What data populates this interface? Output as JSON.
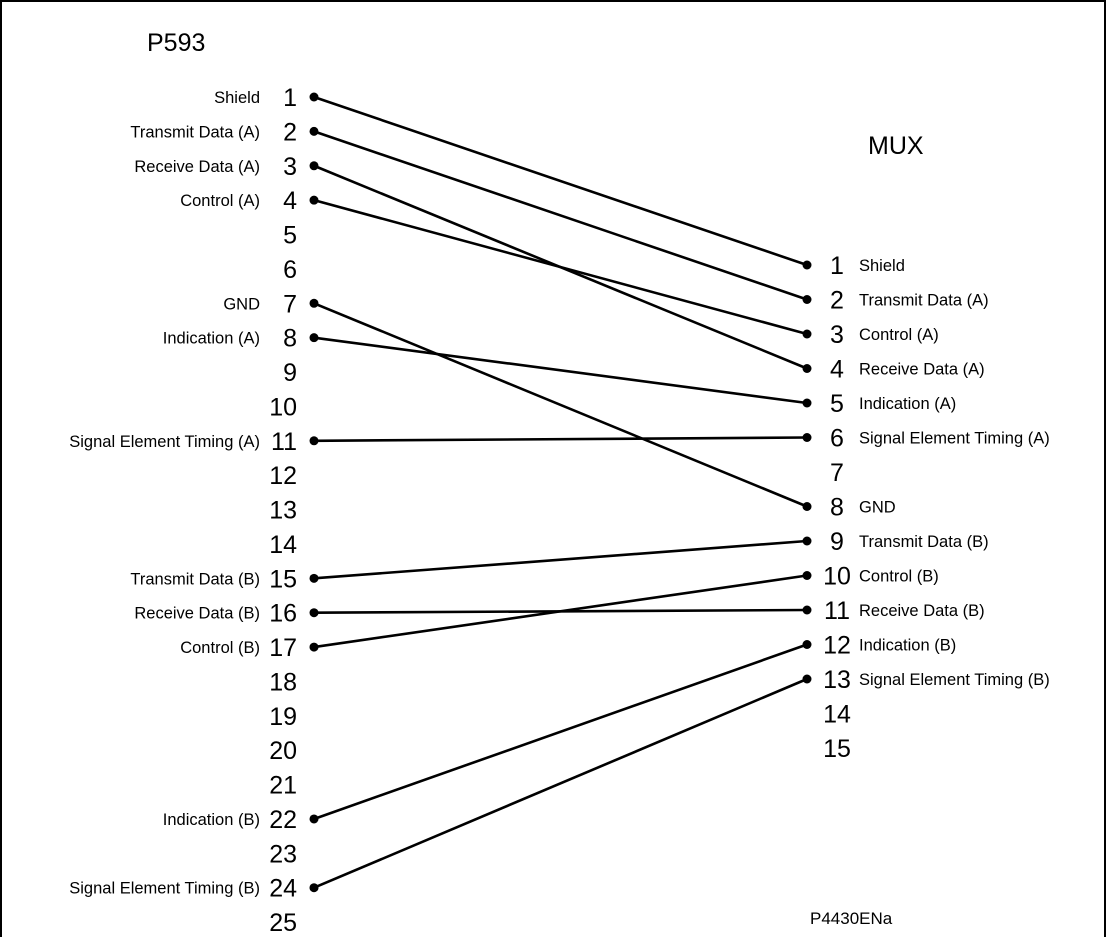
{
  "left": {
    "title": "P593",
    "pins": [
      {
        "num": "1",
        "label": "Shield"
      },
      {
        "num": "2",
        "label": "Transmit Data (A)"
      },
      {
        "num": "3",
        "label": "Receive Data (A)"
      },
      {
        "num": "4",
        "label": "Control (A)"
      },
      {
        "num": "5",
        "label": ""
      },
      {
        "num": "6",
        "label": ""
      },
      {
        "num": "7",
        "label": "GND"
      },
      {
        "num": "8",
        "label": "Indication (A)"
      },
      {
        "num": "9",
        "label": ""
      },
      {
        "num": "10",
        "label": ""
      },
      {
        "num": "11",
        "label": "Signal Element Timing (A)"
      },
      {
        "num": "12",
        "label": ""
      },
      {
        "num": "13",
        "label": ""
      },
      {
        "num": "14",
        "label": ""
      },
      {
        "num": "15",
        "label": "Transmit Data (B)"
      },
      {
        "num": "16",
        "label": "Receive Data (B)"
      },
      {
        "num": "17",
        "label": "Control (B)"
      },
      {
        "num": "18",
        "label": ""
      },
      {
        "num": "19",
        "label": ""
      },
      {
        "num": "20",
        "label": ""
      },
      {
        "num": "21",
        "label": ""
      },
      {
        "num": "22",
        "label": "Indication (B)"
      },
      {
        "num": "23",
        "label": ""
      },
      {
        "num": "24",
        "label": "Signal Element Timing (B)"
      },
      {
        "num": "25",
        "label": ""
      }
    ]
  },
  "right": {
    "title": "MUX",
    "pins": [
      {
        "num": "1",
        "label": "Shield"
      },
      {
        "num": "2",
        "label": "Transmit Data (A)"
      },
      {
        "num": "3",
        "label": "Control (A)"
      },
      {
        "num": "4",
        "label": "Receive Data (A)"
      },
      {
        "num": "5",
        "label": "Indication (A)"
      },
      {
        "num": "6",
        "label": "Signal Element Timing (A)"
      },
      {
        "num": "7",
        "label": ""
      },
      {
        "num": "8",
        "label": "GND"
      },
      {
        "num": "9",
        "label": "Transmit Data (B)"
      },
      {
        "num": "10",
        "label": "Control (B)"
      },
      {
        "num": "11",
        "label": "Receive Data (B)"
      },
      {
        "num": "12",
        "label": "Indication (B)"
      },
      {
        "num": "13",
        "label": "Signal Element Timing (B)"
      },
      {
        "num": "14",
        "label": ""
      },
      {
        "num": "15",
        "label": ""
      }
    ]
  },
  "connections": [
    {
      "from": "1",
      "to": "1"
    },
    {
      "from": "2",
      "to": "2"
    },
    {
      "from": "3",
      "to": "4"
    },
    {
      "from": "4",
      "to": "3"
    },
    {
      "from": "7",
      "to": "8"
    },
    {
      "from": "8",
      "to": "5"
    },
    {
      "from": "11",
      "to": "6"
    },
    {
      "from": "15",
      "to": "9"
    },
    {
      "from": "16",
      "to": "11"
    },
    {
      "from": "17",
      "to": "10"
    },
    {
      "from": "22",
      "to": "12"
    },
    {
      "from": "24",
      "to": "13"
    }
  ],
  "figure_ref": "P4430ENa"
}
